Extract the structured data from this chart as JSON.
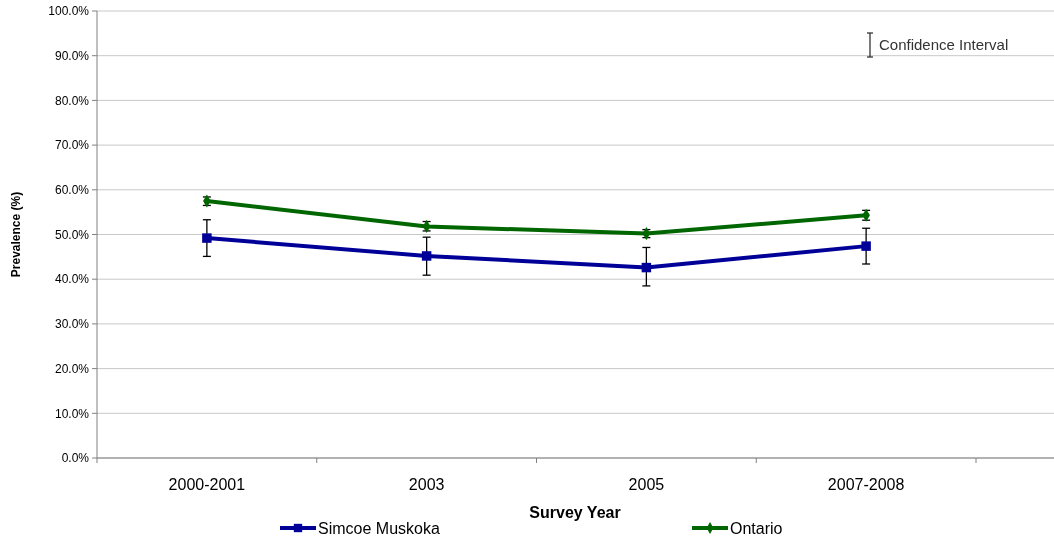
{
  "chart_data": {
    "type": "line",
    "xlabel": "Survey Year",
    "ylabel": "Prevalence (%)",
    "categories": [
      "2000-2001",
      "2003",
      "2005",
      "2007-2008"
    ],
    "series": [
      {
        "name": "Simcoe Muskoka",
        "color": "#000099",
        "marker": "square",
        "values": [
          49.2,
          45.2,
          42.6,
          47.4
        ],
        "errors": [
          [
            45.1,
            53.3
          ],
          [
            40.9,
            49.4
          ],
          [
            38.5,
            47.1
          ],
          [
            43.4,
            51.4
          ]
        ]
      },
      {
        "name": "Ontario",
        "color": "#006600",
        "marker": "diamond",
        "values": [
          57.5,
          51.8,
          50.2,
          54.3
        ],
        "errors": [
          [
            56.5,
            58.4
          ],
          [
            50.8,
            52.9
          ],
          [
            49.3,
            51.1
          ],
          [
            53.2,
            55.4
          ]
        ]
      }
    ],
    "ylim": [
      0,
      100
    ],
    "yticks": [
      {
        "value": 0,
        "label": "0.0%"
      },
      {
        "value": 10,
        "label": "10.0%"
      },
      {
        "value": 20,
        "label": "20.0%"
      },
      {
        "value": 30,
        "label": "30.0%"
      },
      {
        "value": 40,
        "label": "40.0%"
      },
      {
        "value": 50,
        "label": "50.0%"
      },
      {
        "value": 60,
        "label": "60.0%"
      },
      {
        "value": 70,
        "label": "70.0%"
      },
      {
        "value": 80,
        "label": "80.0%"
      },
      {
        "value": 90,
        "label": "90.0%"
      },
      {
        "value": 100,
        "label": "100.0%"
      }
    ],
    "grid": "y",
    "legend": "bottom",
    "line_style": "solid",
    "annotations": [
      "Confidence Interval"
    ]
  }
}
